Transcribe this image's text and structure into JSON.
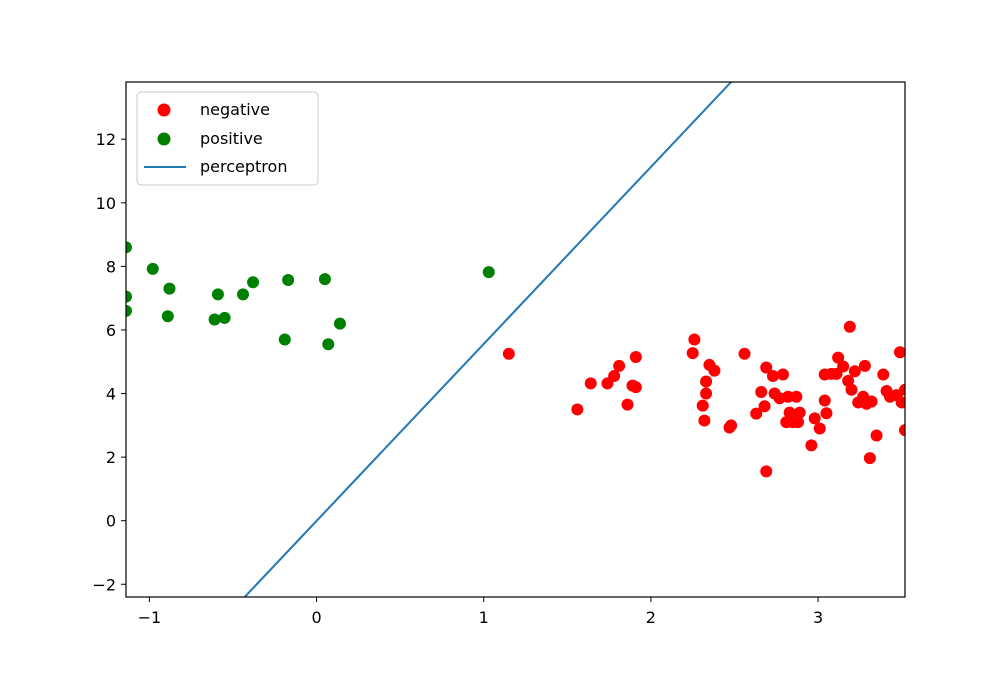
{
  "chart_data": {
    "type": "scatter",
    "title": "",
    "xlabel": "",
    "ylabel": "",
    "xlim": [
      -1.14,
      3.52
    ],
    "ylim": [
      -2.4,
      13.8
    ],
    "grid": false,
    "legend_placement": "top-left",
    "x_ticks": [
      "−1",
      "0",
      "1",
      "2",
      "3"
    ],
    "x_tick_values": [
      -1,
      0,
      1,
      2,
      3
    ],
    "y_ticks": [
      "−2",
      "0",
      "2",
      "4",
      "6",
      "8",
      "10",
      "12"
    ],
    "y_tick_values": [
      -2,
      0,
      2,
      4,
      6,
      8,
      10,
      12
    ],
    "series": [
      {
        "name": "negative",
        "kind": "scatter",
        "color": "#ff0000",
        "points": [
          [
            1.15,
            5.25
          ],
          [
            1.56,
            3.5
          ],
          [
            1.64,
            4.32
          ],
          [
            1.74,
            4.32
          ],
          [
            1.78,
            4.55
          ],
          [
            1.81,
            4.87
          ],
          [
            1.86,
            3.65
          ],
          [
            1.89,
            4.25
          ],
          [
            1.91,
            4.2
          ],
          [
            1.91,
            5.15
          ],
          [
            2.25,
            5.27
          ],
          [
            2.26,
            5.7
          ],
          [
            2.31,
            3.62
          ],
          [
            2.32,
            3.15
          ],
          [
            2.33,
            4.0
          ],
          [
            2.33,
            4.38
          ],
          [
            2.35,
            4.9
          ],
          [
            2.38,
            4.72
          ],
          [
            2.47,
            2.93
          ],
          [
            2.48,
            3.0
          ],
          [
            2.56,
            5.25
          ],
          [
            2.63,
            3.37
          ],
          [
            2.66,
            4.05
          ],
          [
            2.68,
            3.6
          ],
          [
            2.69,
            4.82
          ],
          [
            2.69,
            1.55
          ],
          [
            2.73,
            4.55
          ],
          [
            2.74,
            4.0
          ],
          [
            2.77,
            3.85
          ],
          [
            2.79,
            4.6
          ],
          [
            2.81,
            3.1
          ],
          [
            2.82,
            3.9
          ],
          [
            2.83,
            3.4
          ],
          [
            2.85,
            3.1
          ],
          [
            2.87,
            3.9
          ],
          [
            2.88,
            3.1
          ],
          [
            2.89,
            3.4
          ],
          [
            2.96,
            2.37
          ],
          [
            2.98,
            3.22
          ],
          [
            3.01,
            2.9
          ],
          [
            3.04,
            4.6
          ],
          [
            3.04,
            3.78
          ],
          [
            3.05,
            3.38
          ],
          [
            3.08,
            4.62
          ],
          [
            3.11,
            4.62
          ],
          [
            3.12,
            5.13
          ],
          [
            3.15,
            4.85
          ],
          [
            3.18,
            4.4
          ],
          [
            3.19,
            6.1
          ],
          [
            3.2,
            4.12
          ],
          [
            3.22,
            4.7
          ],
          [
            3.24,
            3.72
          ],
          [
            3.27,
            3.9
          ],
          [
            3.28,
            4.87
          ],
          [
            3.29,
            3.68
          ],
          [
            3.31,
            1.97
          ],
          [
            3.32,
            3.75
          ],
          [
            3.35,
            2.68
          ],
          [
            3.39,
            4.6
          ],
          [
            3.41,
            4.08
          ],
          [
            3.43,
            3.9
          ],
          [
            3.47,
            3.95
          ],
          [
            3.49,
            5.3
          ],
          [
            3.5,
            3.72
          ],
          [
            3.52,
            4.12
          ],
          [
            3.52,
            2.85
          ]
        ]
      },
      {
        "name": "positive",
        "kind": "scatter",
        "color": "#008000",
        "points": [
          [
            -1.14,
            8.6
          ],
          [
            -1.14,
            7.05
          ],
          [
            -1.14,
            6.6
          ],
          [
            -0.98,
            7.92
          ],
          [
            -0.88,
            7.3
          ],
          [
            -0.89,
            6.43
          ],
          [
            -0.61,
            6.33
          ],
          [
            -0.59,
            7.12
          ],
          [
            -0.55,
            6.38
          ],
          [
            -0.44,
            7.12
          ],
          [
            -0.38,
            7.5
          ],
          [
            -0.19,
            5.7
          ],
          [
            -0.17,
            7.57
          ],
          [
            0.05,
            7.6
          ],
          [
            0.07,
            5.55
          ],
          [
            0.14,
            6.2
          ],
          [
            1.03,
            7.82
          ]
        ]
      },
      {
        "name": "perceptron",
        "kind": "line",
        "color": "#1f77b4",
        "points": [
          [
            -0.43,
            -2.4
          ],
          [
            2.48,
            13.8
          ]
        ]
      }
    ]
  }
}
